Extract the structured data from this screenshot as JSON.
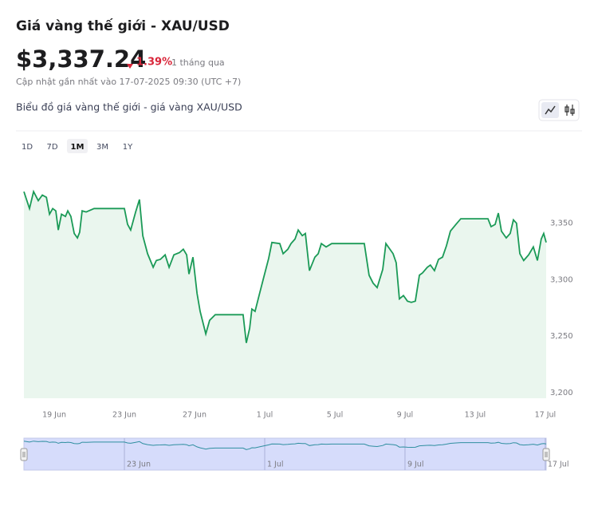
{
  "header": {
    "title": "Giá vàng thế giới - XAU/USD",
    "price": "$3,337.24",
    "change": "1.39%",
    "period": "1 tháng qua",
    "updated": "Cập nhật gần nhất vào 17-07-2025 09:30 (UTC +7)",
    "chart_heading": "Biểu đồ giá vàng thế giới - giá vàng XAU/USD"
  },
  "ranges": {
    "options": [
      "1D",
      "7D",
      "1M",
      "3M",
      "1Y"
    ],
    "active": 2
  },
  "chart_data": {
    "type": "area",
    "color": "#1b9a57",
    "fill": "#eaf6ee",
    "grid": false,
    "x": [
      168.27,
      168.59,
      168.82,
      169.09,
      169.32,
      169.55,
      169.73,
      169.91,
      170.09,
      170.23,
      170.41,
      170.64,
      170.77,
      170.95,
      171.14,
      171.32,
      171.45,
      171.59,
      171.82,
      172.27,
      174.0,
      174.18,
      174.36,
      174.64,
      174.86,
      175.05,
      175.32,
      175.64,
      175.82,
      176.05,
      176.32,
      176.55,
      176.82,
      177.14,
      177.36,
      177.55,
      177.68,
      177.91,
      178.14,
      178.32,
      178.64,
      178.86,
      179.18,
      180.77,
      180.95,
      181.14,
      181.27,
      181.45,
      181.68,
      181.91,
      182.23,
      182.41,
      182.86,
      183.05,
      183.32,
      183.5,
      183.73,
      183.91,
      184.14,
      184.32,
      184.55,
      184.86,
      185.05,
      185.23,
      185.5,
      185.82,
      187.68,
      187.95,
      188.18,
      188.41,
      188.73,
      188.91,
      189.32,
      189.5,
      189.68,
      189.91,
      190.14,
      190.36,
      190.59,
      190.82,
      191.0,
      191.27,
      191.45,
      191.68,
      191.91,
      192.14,
      192.36,
      192.59,
      192.91,
      193.18,
      194.73,
      194.91,
      195.14,
      195.32,
      195.5,
      195.77,
      196.0,
      196.18,
      196.36,
      196.55,
      196.77,
      197.05,
      197.32,
      197.55,
      197.77,
      197.91,
      198.05
    ],
    "values": [
      3378,
      3363,
      3378,
      3370,
      3375,
      3373,
      3358,
      3363,
      3361,
      3344,
      3358,
      3356,
      3361,
      3356,
      3341,
      3337,
      3342,
      3361,
      3360,
      3363,
      3363,
      3349,
      3344,
      3360,
      3371,
      3339,
      3323,
      3311,
      3317,
      3318,
      3322,
      3311,
      3322,
      3324,
      3327,
      3322,
      3305,
      3320,
      3288,
      3272,
      3252,
      3264,
      3269,
      3269,
      3244,
      3257,
      3274,
      3272,
      3286,
      3300,
      3319,
      3333,
      3332,
      3323,
      3327,
      3332,
      3336,
      3344,
      3339,
      3341,
      3308,
      3320,
      3323,
      3332,
      3329,
      3332,
      3332,
      3304,
      3297,
      3293,
      3309,
      3332,
      3323,
      3315,
      3283,
      3286,
      3281,
      3280,
      3281,
      3304,
      3306,
      3311,
      3313,
      3308,
      3318,
      3320,
      3330,
      3343,
      3349,
      3354,
      3354,
      3347,
      3349,
      3359,
      3343,
      3337,
      3341,
      3353,
      3350,
      3323,
      3317,
      3322,
      3329,
      3317,
      3336,
      3341,
      3333
    ],
    "xlim": [
      168.27,
      198.05
    ],
    "xticks": [
      {
        "value": 170,
        "label": "19 Jun"
      },
      {
        "value": 174,
        "label": "23 Jun"
      },
      {
        "value": 178,
        "label": "27 Jun"
      },
      {
        "value": 182,
        "label": "1 Jul"
      },
      {
        "value": 186,
        "label": "5 Jul"
      },
      {
        "value": 190,
        "label": "9 Jul"
      },
      {
        "value": 194,
        "label": "13 Jul"
      },
      {
        "value": 198,
        "label": "17 Jul"
      }
    ],
    "ylim": [
      3195,
      3400
    ],
    "yticks": [
      {
        "value": 3200,
        "label": "3,200"
      },
      {
        "value": 3250,
        "label": "3,250"
      },
      {
        "value": 3300,
        "label": "3,300"
      },
      {
        "value": 3350,
        "label": "3,350"
      }
    ],
    "navigator_ticks": [
      1,
      3,
      5,
      7
    ]
  }
}
